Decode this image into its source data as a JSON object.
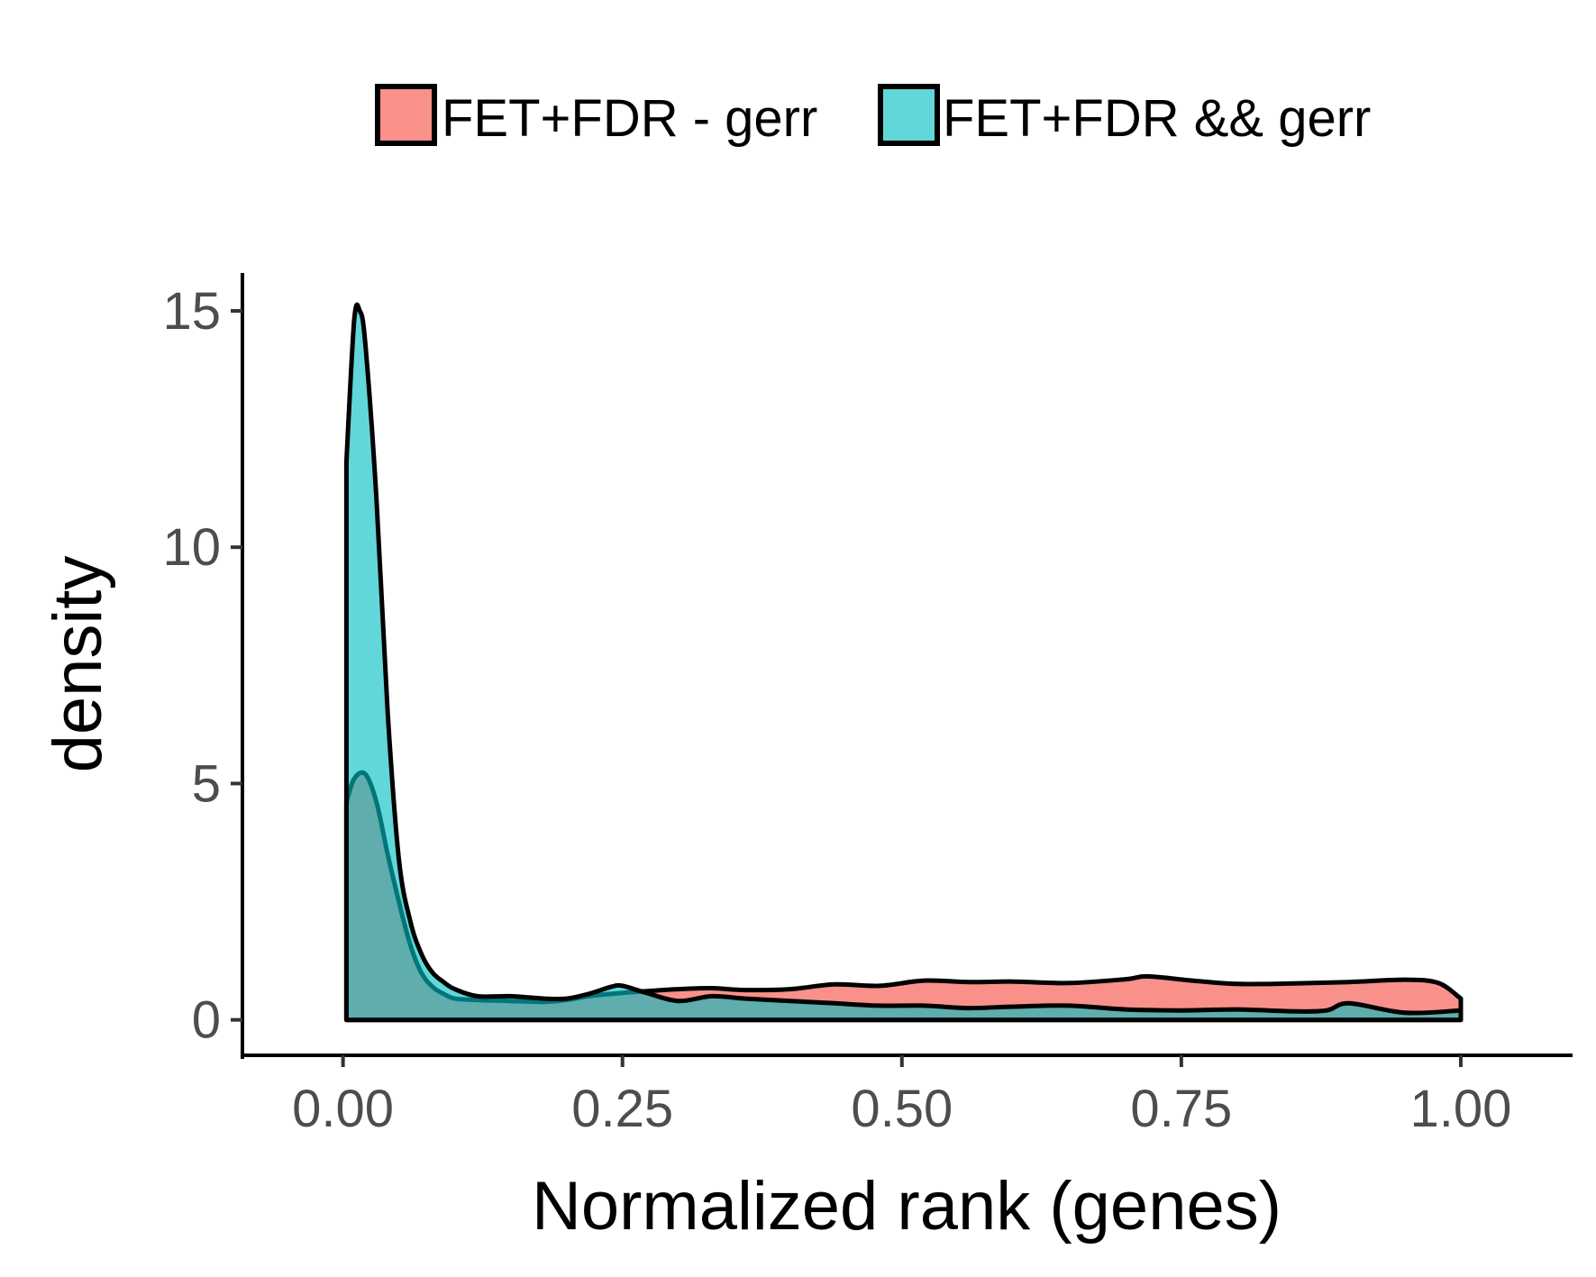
{
  "chart_data": {
    "type": "area",
    "title": "",
    "xlabel": "Normalized rank (genes)",
    "ylabel": "density",
    "xlim": [
      -0.09,
      1.1
    ],
    "ylim": [
      -0.75,
      15.8
    ],
    "x_ticks": [
      0.0,
      0.25,
      0.5,
      0.75,
      1.0
    ],
    "x_tick_labels": [
      "0.00",
      "0.25",
      "0.50",
      "0.75",
      "1.00"
    ],
    "y_ticks": [
      0,
      5,
      10,
      15
    ],
    "y_tick_labels": [
      "0",
      "5",
      "10",
      "15"
    ],
    "grid": false,
    "legend_position": "top",
    "series": [
      {
        "name": "FET+FDR - gerr",
        "color": "#F8766D",
        "opacity": 0.8,
        "x": [
          0.003,
          0.01,
          0.02,
          0.03,
          0.04,
          0.05,
          0.06,
          0.07,
          0.08,
          0.09,
          0.1,
          0.12,
          0.15,
          0.18,
          0.2,
          0.22,
          0.25,
          0.28,
          0.3,
          0.33,
          0.36,
          0.4,
          0.44,
          0.48,
          0.52,
          0.56,
          0.6,
          0.65,
          0.7,
          0.72,
          0.76,
          0.8,
          0.85,
          0.9,
          0.95,
          0.98,
          1.0
        ],
        "y": [
          4.6,
          5.1,
          5.2,
          4.6,
          3.5,
          2.5,
          1.6,
          1.0,
          0.7,
          0.55,
          0.45,
          0.42,
          0.4,
          0.38,
          0.42,
          0.5,
          0.57,
          0.62,
          0.65,
          0.67,
          0.63,
          0.65,
          0.75,
          0.72,
          0.83,
          0.8,
          0.81,
          0.78,
          0.86,
          0.92,
          0.83,
          0.76,
          0.77,
          0.8,
          0.85,
          0.78,
          0.45
        ]
      },
      {
        "name": "FET+FDR && gerr",
        "color": "#00BFC4",
        "opacity": 0.62,
        "x": [
          0.003,
          0.01,
          0.015,
          0.02,
          0.03,
          0.04,
          0.05,
          0.06,
          0.07,
          0.08,
          0.09,
          0.1,
          0.12,
          0.15,
          0.18,
          0.2,
          0.22,
          0.24,
          0.25,
          0.27,
          0.3,
          0.33,
          0.36,
          0.4,
          0.44,
          0.48,
          0.52,
          0.56,
          0.6,
          0.65,
          0.7,
          0.75,
          0.8,
          0.85,
          0.88,
          0.9,
          0.95,
          1.0
        ],
        "y": [
          11.8,
          14.8,
          15.0,
          14.3,
          11.0,
          6.5,
          3.4,
          2.1,
          1.4,
          1.0,
          0.8,
          0.65,
          0.5,
          0.5,
          0.45,
          0.45,
          0.55,
          0.7,
          0.72,
          0.58,
          0.4,
          0.5,
          0.45,
          0.4,
          0.35,
          0.3,
          0.3,
          0.25,
          0.28,
          0.3,
          0.22,
          0.2,
          0.22,
          0.18,
          0.2,
          0.35,
          0.15,
          0.2
        ]
      }
    ]
  }
}
